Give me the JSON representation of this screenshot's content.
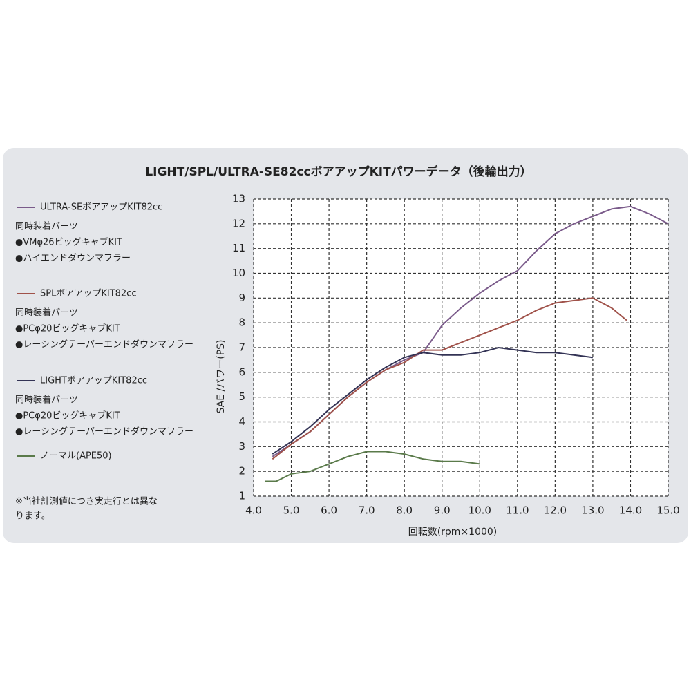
{
  "chart_data": {
    "type": "line",
    "title": "LIGHT/SPL/ULTRA-SE82ccボアアップKITパワーデータ（後輪出力）",
    "x_label": "回転数(rpm×1000)",
    "y_label": "SAE /パワー(PS)",
    "xlim": [
      4,
      15
    ],
    "ylim": [
      1,
      13
    ],
    "xticks": [
      {
        "value": 4,
        "label": "4.0"
      },
      {
        "value": 5,
        "label": "5.0"
      },
      {
        "value": 6,
        "label": "6.0"
      },
      {
        "value": 7,
        "label": "7.0"
      },
      {
        "value": 8,
        "label": "8.0"
      },
      {
        "value": 9,
        "label": "9.0"
      },
      {
        "value": 10,
        "label": "10.0"
      },
      {
        "value": 11,
        "label": "11.0"
      },
      {
        "value": 12,
        "label": "12.0"
      },
      {
        "value": 13,
        "label": "13.0"
      },
      {
        "value": 14,
        "label": "14.0"
      },
      {
        "value": 15,
        "label": "15.0"
      }
    ],
    "yticks": [
      1,
      2,
      3,
      4,
      5,
      6,
      7,
      8,
      9,
      10,
      11,
      12,
      13
    ],
    "grid": true,
    "series": [
      {
        "name": "ULTRA-SEボアアップKIT82cc",
        "color": "#7a5a8a",
        "parts_heading": "同時装着パーツ",
        "parts": [
          "●VMφ26ビッグキャブKIT",
          "●ハイエンドダウンマフラー"
        ],
        "x": [
          4.5,
          5,
          5.5,
          6,
          6.5,
          7,
          7.5,
          8,
          8.5,
          9,
          9.5,
          10,
          10.5,
          11,
          11.5,
          12,
          12.5,
          13,
          13.5,
          14,
          14.5,
          15
        ],
        "values": [
          2.6,
          3.1,
          3.6,
          4.3,
          5.0,
          5.6,
          6.1,
          6.5,
          6.8,
          7.9,
          8.6,
          9.2,
          9.7,
          10.1,
          10.9,
          11.6,
          12.0,
          12.3,
          12.6,
          12.7,
          12.4,
          12.0
        ]
      },
      {
        "name": "SPLボアアップKIT82cc",
        "color": "#a0524a",
        "parts_heading": "同時装着パーツ",
        "parts": [
          "●PCφ20ビッグキャブKIT",
          "●レーシングテーパーエンドダウンマフラー"
        ],
        "x": [
          4.5,
          5,
          5.5,
          6,
          6.5,
          7,
          7.5,
          8,
          8.5,
          9,
          9.5,
          10,
          10.5,
          11,
          11.5,
          12,
          12.5,
          13,
          13.5,
          13.9
        ],
        "values": [
          2.5,
          3.1,
          3.6,
          4.3,
          5.0,
          5.6,
          6.1,
          6.4,
          6.9,
          6.9,
          7.2,
          7.5,
          7.8,
          8.1,
          8.5,
          8.8,
          8.9,
          9.0,
          8.6,
          8.1
        ]
      },
      {
        "name": "LIGHTボアアップKIT82cc",
        "color": "#333355",
        "parts_heading": "同時装着パーツ",
        "parts": [
          "●PCφ20ビッグキャブKIT",
          "●レーシングテーパーエンドダウンマフラー"
        ],
        "x": [
          4.5,
          5,
          5.5,
          6,
          6.5,
          7,
          7.5,
          8,
          8.5,
          9,
          9.5,
          10,
          10.5,
          11,
          11.5,
          12,
          12.5,
          13
        ],
        "values": [
          2.7,
          3.2,
          3.8,
          4.5,
          5.1,
          5.7,
          6.2,
          6.6,
          6.8,
          6.7,
          6.7,
          6.8,
          7.0,
          6.9,
          6.8,
          6.8,
          6.7,
          6.6
        ]
      },
      {
        "name": "ノーマル(APE50)",
        "color": "#5a7a4a",
        "x": [
          4.3,
          4.6,
          5,
          5.5,
          6,
          6.5,
          7,
          7.5,
          8,
          8.5,
          9,
          9.5,
          10
        ],
        "values": [
          1.6,
          1.6,
          1.9,
          2.0,
          2.3,
          2.6,
          2.8,
          2.8,
          2.7,
          2.5,
          2.4,
          2.4,
          2.3
        ]
      }
    ],
    "note": [
      "※当社計測値につき実走行とは異な",
      "ります。"
    ]
  }
}
